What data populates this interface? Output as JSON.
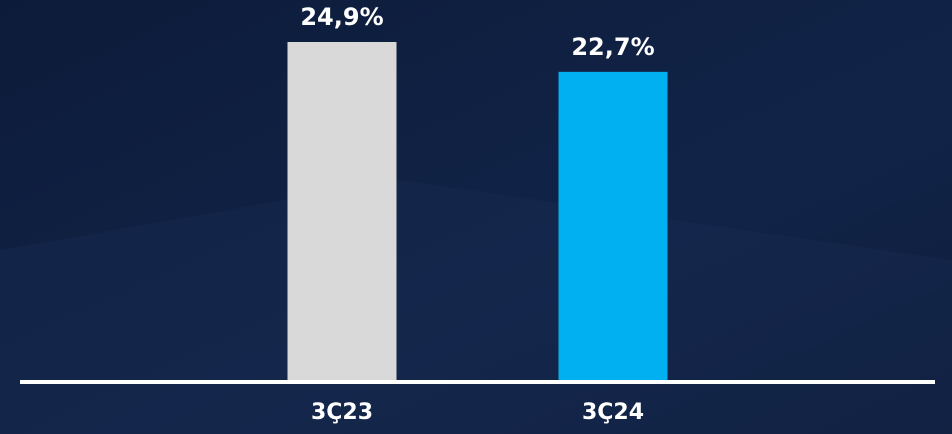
{
  "chart_data": {
    "type": "bar",
    "categories": [
      "3Ç23",
      "3Ç24"
    ],
    "values": [
      24.9,
      22.7
    ],
    "value_labels": [
      "24,9%",
      "22,7%"
    ],
    "colors": [
      "#d9d9d9",
      "#00b0f0"
    ]
  }
}
